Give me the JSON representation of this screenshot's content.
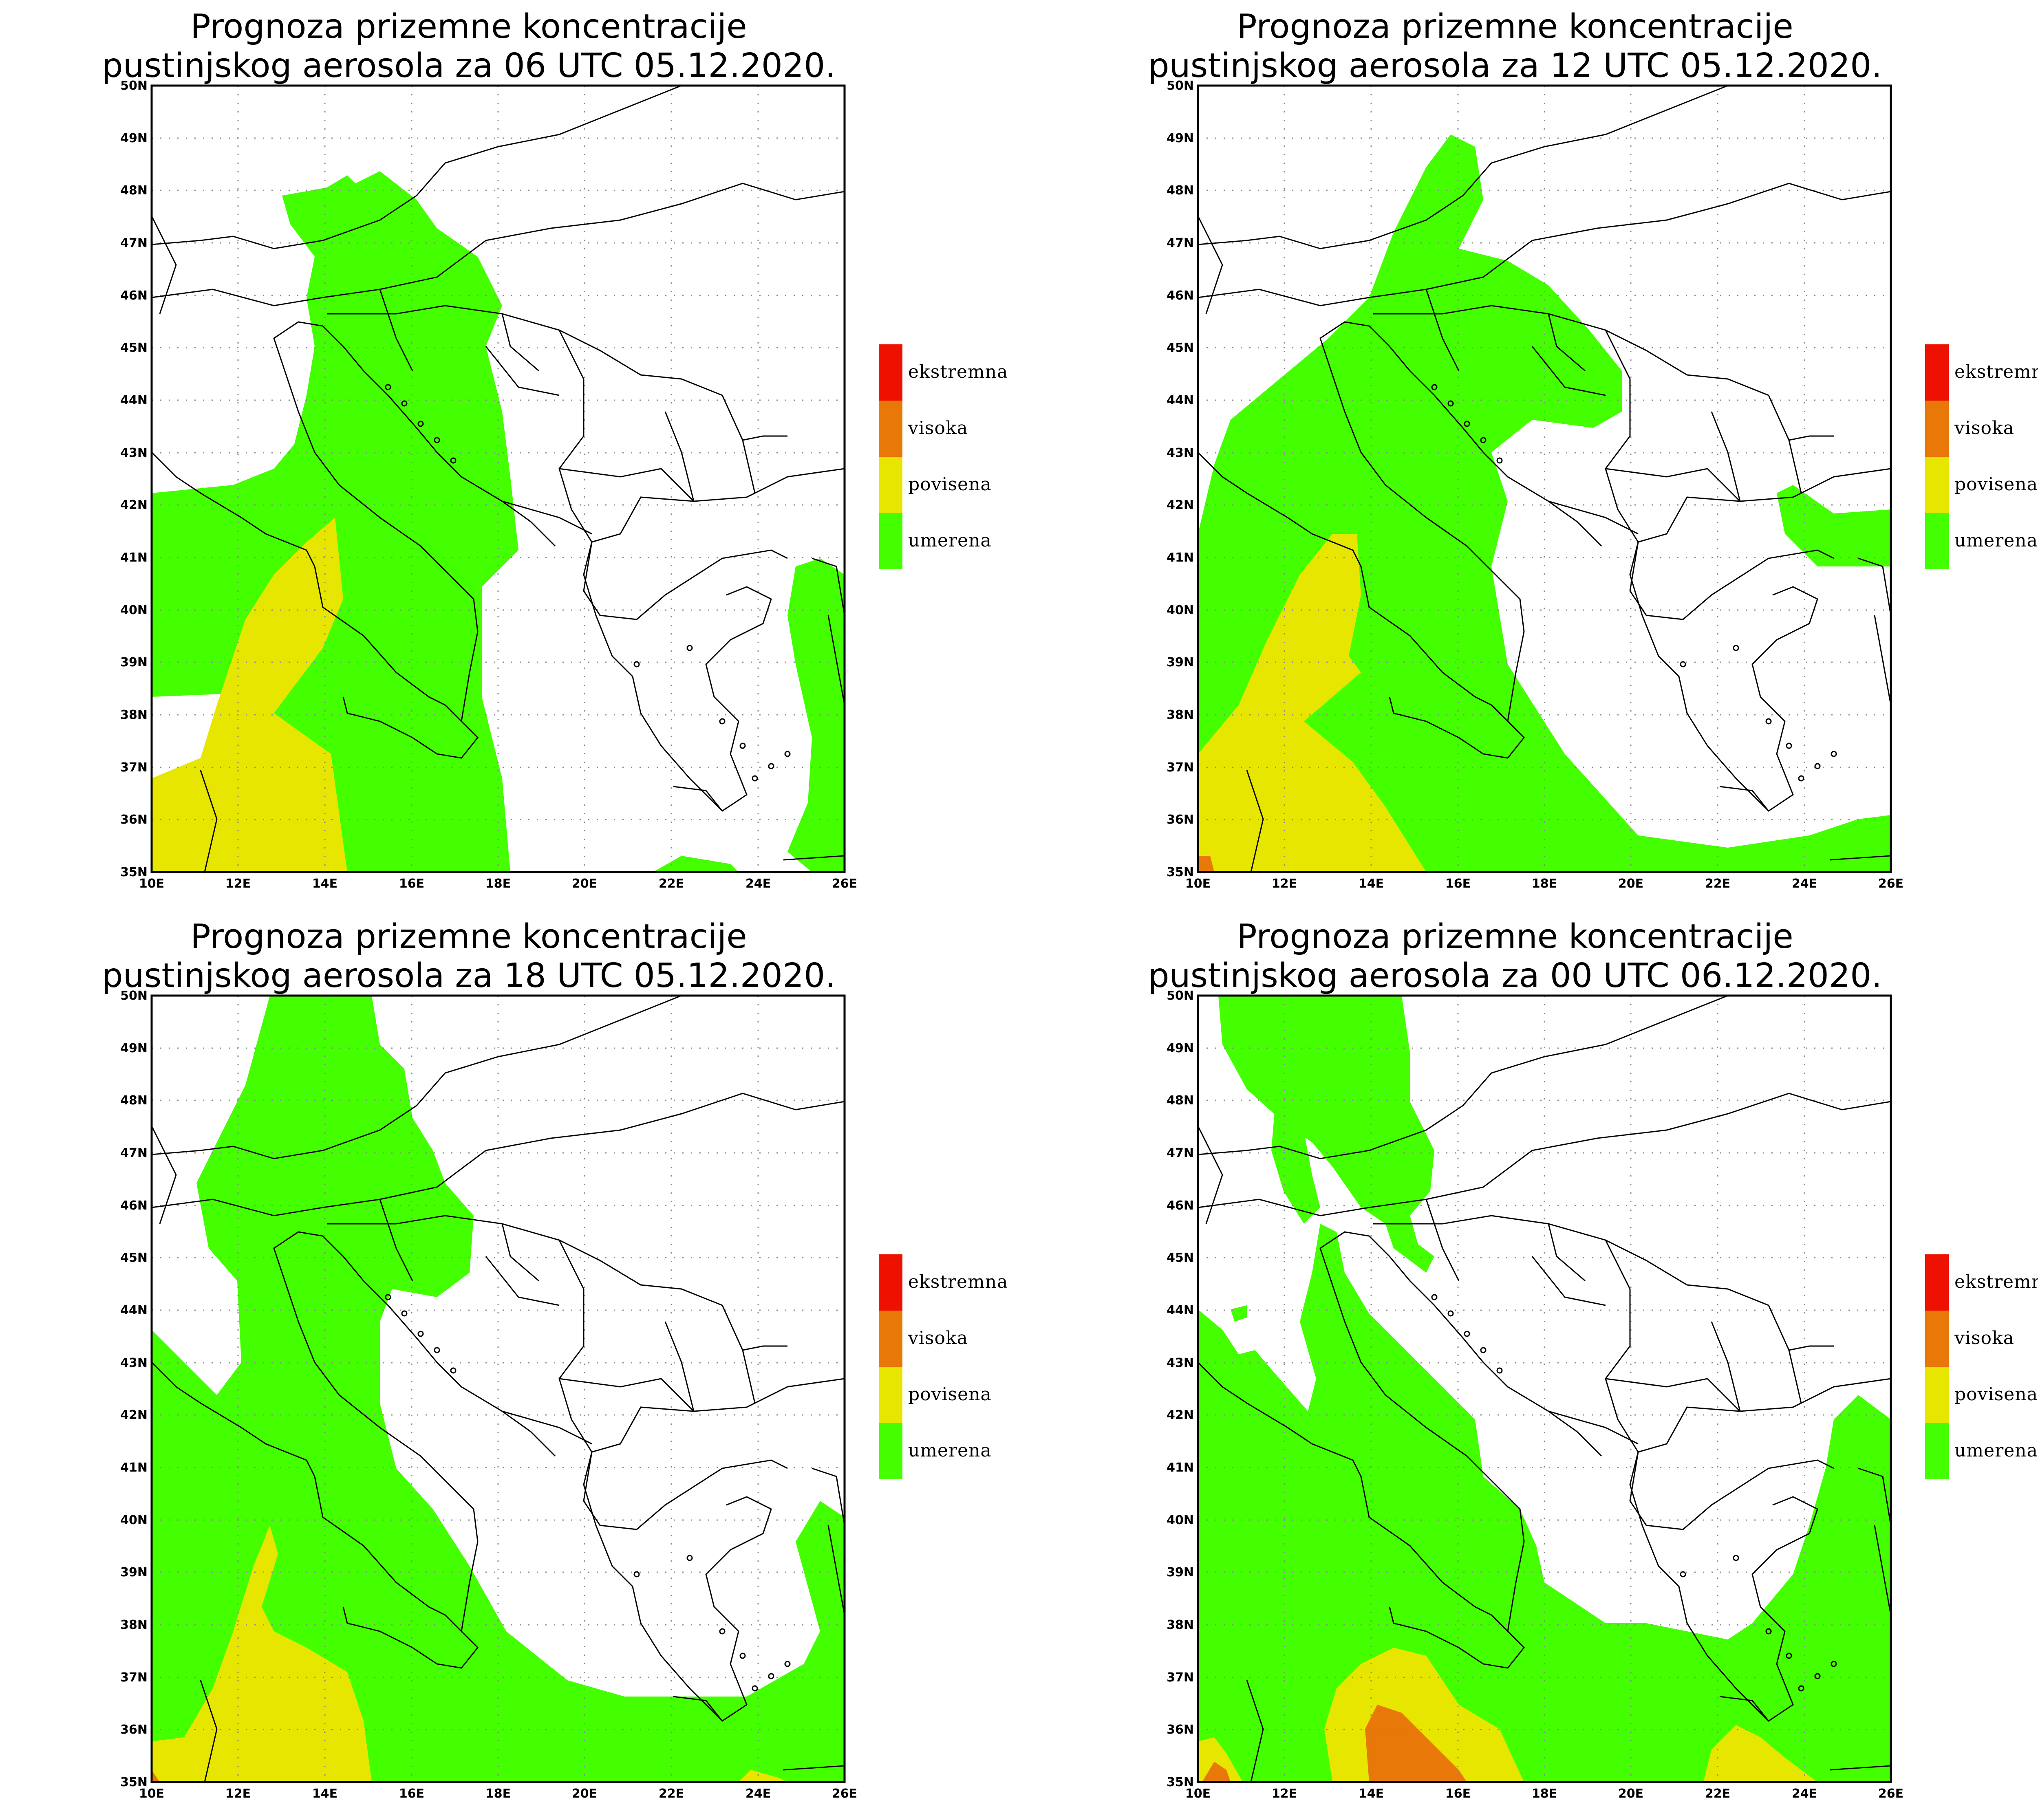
{
  "colors": {
    "umerena": "#44ff00",
    "povisena": "#e6e600",
    "visoka": "#e87808",
    "ekstremna": "#ee1100",
    "border": "#000000",
    "grid": "#888888"
  },
  "axes": {
    "lat_labels": [
      "35N",
      "36N",
      "37N",
      "38N",
      "39N",
      "40N",
      "41N",
      "42N",
      "43N",
      "44N",
      "45N",
      "46N",
      "47N",
      "48N",
      "49N",
      "50N"
    ],
    "lon_labels": [
      "10E",
      "12E",
      "14E",
      "16E",
      "18E",
      "20E",
      "22E",
      "24E",
      "26E"
    ]
  },
  "legend": [
    {
      "key": "ekstremna",
      "label": "ekstremna",
      "color": "#ee1100"
    },
    {
      "key": "visoka",
      "label": "visoka",
      "color": "#e87808"
    },
    {
      "key": "povisena",
      "label": "povisena",
      "color": "#e6e600"
    },
    {
      "key": "umerena",
      "label": "umerena",
      "color": "#44ff00"
    }
  ],
  "panels": [
    {
      "title_line1": "Prognoza prizemne koncentracije",
      "title_line2": "pustinjskog aerosola za 06 UTC 05.12.2020."
    },
    {
      "title_line1": "Prognoza prizemne koncentracije",
      "title_line2": "pustinjskog aerosola za 12 UTC 05.12.2020."
    },
    {
      "title_line1": "Prognoza prizemne koncentracije",
      "title_line2": "pustinjskog aerosola za 18 UTC 05.12.2020."
    },
    {
      "title_line1": "Prognoza prizemne koncentracije",
      "title_line2": "pustinjskog aerosola za 00 UTC 06.12.2020."
    }
  ]
}
